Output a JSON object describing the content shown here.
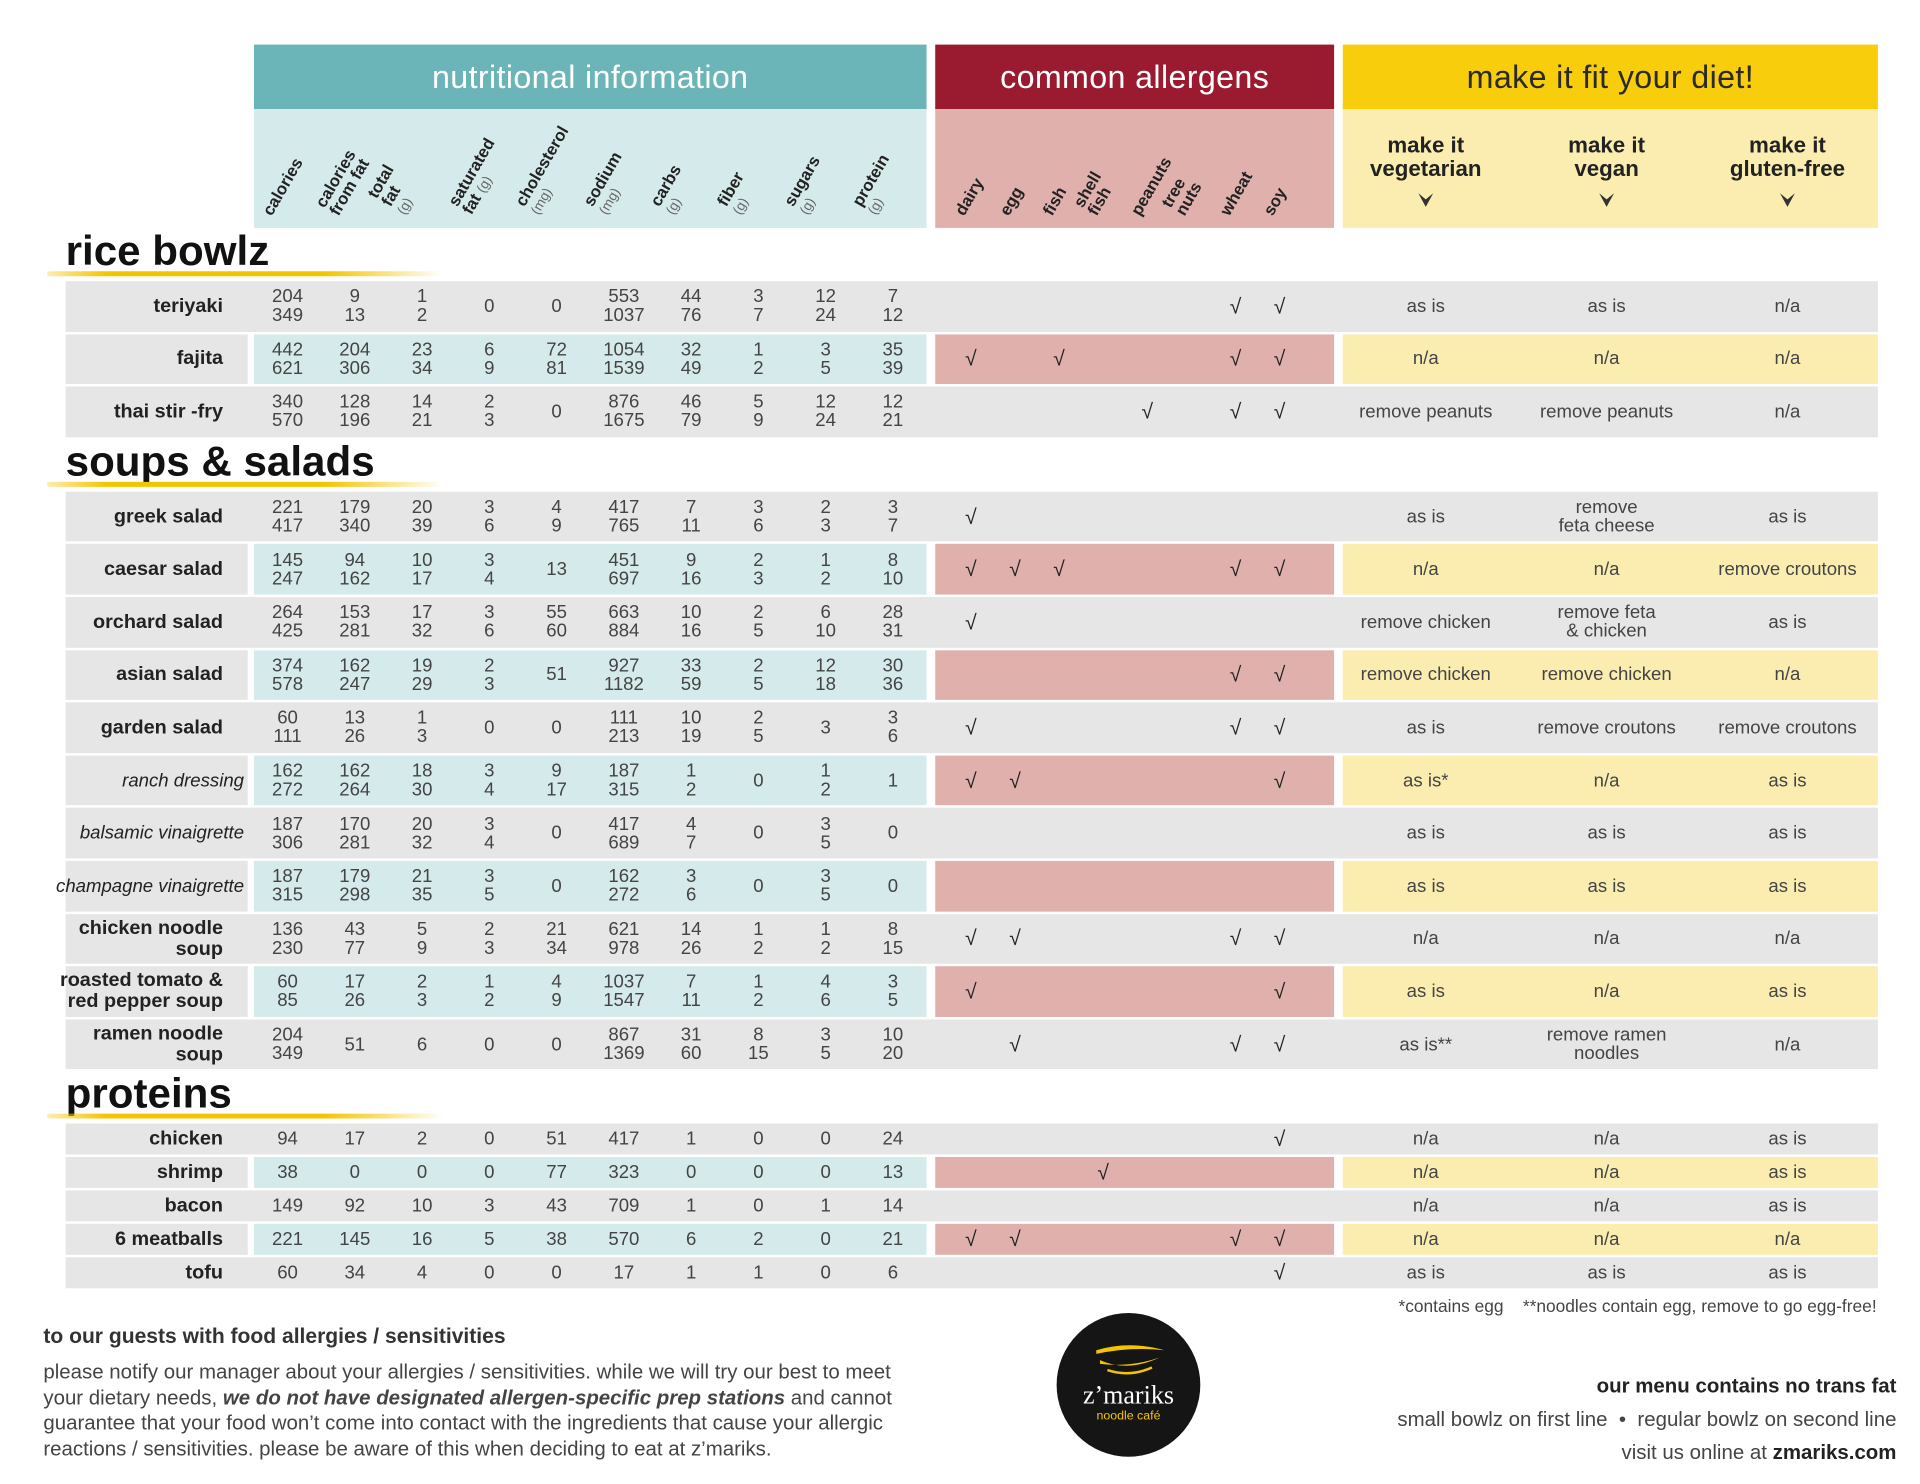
{
  "header": {
    "groups": [
      "nutritional information",
      "common allergens",
      "make it fit your diet!"
    ]
  },
  "nutrition_columns": [
    {
      "label": "calories"
    },
    {
      "label": "calories\nfrom fat"
    },
    {
      "label": "total fat",
      "unit": "(g)"
    },
    {
      "label": "saturated\nfat",
      "unit": "(g)"
    },
    {
      "label": "cholesterol",
      "unit": "(mg)"
    },
    {
      "label": "sodium",
      "unit": "(mg)"
    },
    {
      "label": "carbs",
      "unit": "(g)"
    },
    {
      "label": "fiber",
      "unit": "(g)"
    },
    {
      "label": "sugars",
      "unit": "(g)"
    },
    {
      "label": "protein",
      "unit": "(g)"
    }
  ],
  "allergen_columns": [
    "dairy",
    "egg",
    "fish",
    "shell fish",
    "peanuts",
    "tree nuts",
    "wheat",
    "soy"
  ],
  "diet_columns": [
    "make it\nvegetarian",
    "make it\nvegan",
    "make it\ngluten-free"
  ],
  "sections": [
    {
      "title": "rice bowlz",
      "rows": [
        {
          "name": "teriyaki",
          "nutrition": [
            [
              204,
              349
            ],
            [
              9,
              13
            ],
            [
              1,
              2
            ],
            0,
            0,
            [
              553,
              1037
            ],
            [
              44,
              76
            ],
            [
              3,
              7
            ],
            [
              12,
              24
            ],
            [
              7,
              12
            ]
          ],
          "allergens": [
            null,
            null,
            null,
            null,
            null,
            null,
            "√",
            "√"
          ],
          "diet": [
            "as is",
            "as is",
            "n/a"
          ]
        },
        {
          "name": "fajita",
          "nutrition": [
            [
              442,
              621
            ],
            [
              204,
              306
            ],
            [
              23,
              34
            ],
            [
              6,
              9
            ],
            [
              72,
              81
            ],
            [
              1054,
              1539
            ],
            [
              32,
              49
            ],
            [
              1,
              2
            ],
            [
              3,
              5
            ],
            [
              35,
              39
            ]
          ],
          "allergens": [
            "√",
            null,
            "√",
            null,
            null,
            null,
            "√",
            "√"
          ],
          "diet": [
            "n/a",
            "n/a",
            "n/a"
          ]
        },
        {
          "name": "thai stir -fry",
          "nutrition": [
            [
              340,
              570
            ],
            [
              128,
              196
            ],
            [
              14,
              21
            ],
            [
              2,
              3
            ],
            0,
            [
              876,
              1675
            ],
            [
              46,
              79
            ],
            [
              5,
              9
            ],
            [
              12,
              24
            ],
            [
              12,
              21
            ]
          ],
          "allergens": [
            null,
            null,
            null,
            null,
            "√",
            null,
            "√",
            "√"
          ],
          "diet": [
            "remove peanuts",
            "remove peanuts",
            "n/a"
          ]
        }
      ]
    },
    {
      "title": "soups & salads",
      "rows": [
        {
          "name": "greek salad",
          "nutrition": [
            [
              221,
              417
            ],
            [
              179,
              340
            ],
            [
              20,
              39
            ],
            [
              3,
              6
            ],
            [
              4,
              9
            ],
            [
              417,
              765
            ],
            [
              7,
              11
            ],
            [
              3,
              6
            ],
            [
              2,
              3
            ],
            [
              3,
              7
            ]
          ],
          "allergens": [
            "√",
            null,
            null,
            null,
            null,
            null,
            null,
            null
          ],
          "diet": [
            "as is",
            "remove\nfeta cheese",
            "as is"
          ]
        },
        {
          "name": "caesar salad",
          "nutrition": [
            [
              145,
              247
            ],
            [
              94,
              162
            ],
            [
              10,
              17
            ],
            [
              3,
              4
            ],
            13,
            [
              451,
              697
            ],
            [
              9,
              16
            ],
            [
              2,
              3
            ],
            [
              1,
              2
            ],
            [
              8,
              10
            ]
          ],
          "allergens": [
            "√",
            "√",
            "√",
            null,
            null,
            null,
            "√",
            "√"
          ],
          "diet": [
            "n/a",
            "n/a",
            "remove croutons"
          ]
        },
        {
          "name": "orchard salad",
          "nutrition": [
            [
              264,
              425
            ],
            [
              153,
              281
            ],
            [
              17,
              32
            ],
            [
              3,
              6
            ],
            [
              55,
              60
            ],
            [
              663,
              884
            ],
            [
              10,
              16
            ],
            [
              2,
              5
            ],
            [
              6,
              10
            ],
            [
              28,
              31
            ]
          ],
          "allergens": [
            "√",
            null,
            null,
            null,
            null,
            null,
            null,
            null
          ],
          "diet": [
            "remove chicken",
            "remove feta\n& chicken",
            "as is"
          ]
        },
        {
          "name": "asian salad",
          "nutrition": [
            [
              374,
              578
            ],
            [
              162,
              247
            ],
            [
              19,
              29
            ],
            [
              2,
              3
            ],
            51,
            [
              927,
              1182
            ],
            [
              33,
              59
            ],
            [
              2,
              5
            ],
            [
              12,
              18
            ],
            [
              30,
              36
            ]
          ],
          "allergens": [
            null,
            null,
            null,
            null,
            null,
            null,
            "√",
            "√"
          ],
          "diet": [
            "remove chicken",
            "remove chicken",
            "n/a"
          ]
        },
        {
          "name": "garden salad",
          "nutrition": [
            [
              60,
              111
            ],
            [
              13,
              26
            ],
            [
              1,
              3
            ],
            0,
            0,
            [
              111,
              213
            ],
            [
              10,
              19
            ],
            [
              2,
              5
            ],
            3,
            [
              3,
              6
            ]
          ],
          "allergens": [
            "√",
            null,
            null,
            null,
            null,
            null,
            "√",
            "√"
          ],
          "diet": [
            "as is",
            "remove croutons",
            "remove croutons"
          ]
        },
        {
          "name": "ranch dressing",
          "italic": true,
          "nutrition": [
            [
              162,
              272
            ],
            [
              162,
              264
            ],
            [
              18,
              30
            ],
            [
              3,
              4
            ],
            [
              9,
              17
            ],
            [
              187,
              315
            ],
            [
              1,
              2
            ],
            0,
            [
              1,
              2
            ],
            1
          ],
          "allergens": [
            "√",
            "√",
            null,
            null,
            null,
            null,
            null,
            "√"
          ],
          "diet": [
            "as is*",
            "n/a",
            "as is"
          ]
        },
        {
          "name": "balsamic vinaigrette",
          "italic": true,
          "nutrition": [
            [
              187,
              306
            ],
            [
              170,
              281
            ],
            [
              20,
              32
            ],
            [
              3,
              4
            ],
            0,
            [
              417,
              689
            ],
            [
              4,
              7
            ],
            0,
            [
              3,
              5
            ],
            0
          ],
          "allergens": [
            null,
            null,
            null,
            null,
            null,
            null,
            null,
            null
          ],
          "diet": [
            "as is",
            "as is",
            "as is"
          ]
        },
        {
          "name": "champagne vinaigrette",
          "italic": true,
          "nutrition": [
            [
              187,
              315
            ],
            [
              179,
              298
            ],
            [
              21,
              35
            ],
            [
              3,
              5
            ],
            0,
            [
              162,
              272
            ],
            [
              3,
              6
            ],
            0,
            [
              3,
              5
            ],
            0
          ],
          "allergens": [
            null,
            null,
            null,
            null,
            null,
            null,
            null,
            null
          ],
          "diet": [
            "as is",
            "as is",
            "as is"
          ]
        },
        {
          "name": "chicken noodle\nsoup",
          "nutrition": [
            [
              136,
              230
            ],
            [
              43,
              77
            ],
            [
              5,
              9
            ],
            [
              2,
              3
            ],
            [
              21,
              34
            ],
            [
              621,
              978
            ],
            [
              14,
              26
            ],
            [
              1,
              2
            ],
            [
              1,
              2
            ],
            [
              8,
              15
            ]
          ],
          "allergens": [
            "√",
            "√",
            null,
            null,
            null,
            null,
            "√",
            "√"
          ],
          "diet": [
            "n/a",
            "n/a",
            "n/a"
          ]
        },
        {
          "name": "roasted tomato &\nred pepper soup",
          "nutrition": [
            [
              60,
              85
            ],
            [
              17,
              26
            ],
            [
              2,
              3
            ],
            [
              1,
              2
            ],
            [
              4,
              9
            ],
            [
              1037,
              1547
            ],
            [
              7,
              11
            ],
            [
              1,
              2
            ],
            [
              4,
              6
            ],
            [
              3,
              5
            ]
          ],
          "allergens": [
            "√",
            null,
            null,
            null,
            null,
            null,
            null,
            "√"
          ],
          "diet": [
            "as is",
            "n/a",
            "as is"
          ]
        },
        {
          "name": "ramen noodle\nsoup",
          "nutrition": [
            [
              204,
              349
            ],
            51,
            6,
            0,
            0,
            [
              867,
              1369
            ],
            [
              31,
              60
            ],
            [
              8,
              15
            ],
            [
              3,
              5
            ],
            [
              10,
              20
            ]
          ],
          "allergens": [
            null,
            "√",
            null,
            null,
            null,
            null,
            "√",
            "√"
          ],
          "diet": [
            "as is**",
            "remove ramen\nnoodles",
            "n/a"
          ]
        }
      ]
    },
    {
      "title": "proteins",
      "rows": [
        {
          "name": "chicken",
          "nutrition": [
            94,
            17,
            2,
            0,
            51,
            417,
            1,
            0,
            0,
            24
          ],
          "allergens": [
            null,
            null,
            null,
            null,
            null,
            null,
            null,
            "√"
          ],
          "diet": [
            "n/a",
            "n/a",
            "as is"
          ]
        },
        {
          "name": "shrimp",
          "nutrition": [
            38,
            0,
            0,
            0,
            77,
            323,
            0,
            0,
            0,
            13
          ],
          "allergens": [
            null,
            null,
            null,
            "√",
            null,
            null,
            null,
            null
          ],
          "diet": [
            "n/a",
            "n/a",
            "as is"
          ]
        },
        {
          "name": "bacon",
          "nutrition": [
            149,
            92,
            10,
            3,
            43,
            709,
            1,
            0,
            1,
            14
          ],
          "allergens": [
            null,
            null,
            null,
            null,
            null,
            null,
            null,
            null
          ],
          "diet": [
            "n/a",
            "n/a",
            "as is"
          ]
        },
        {
          "name": "6 meatballs",
          "nutrition": [
            221,
            145,
            16,
            5,
            38,
            570,
            6,
            2,
            0,
            21
          ],
          "allergens": [
            "√",
            "√",
            null,
            null,
            null,
            null,
            "√",
            "√"
          ],
          "diet": [
            "n/a",
            "n/a",
            "n/a"
          ]
        },
        {
          "name": "tofu",
          "nutrition": [
            60,
            34,
            4,
            0,
            0,
            17,
            1,
            1,
            0,
            6
          ],
          "allergens": [
            null,
            null,
            null,
            null,
            null,
            null,
            null,
            "√"
          ],
          "diet": [
            "as is",
            "as is",
            "as is"
          ]
        }
      ]
    }
  ],
  "footnotes": [
    "*contains egg",
    "**noodles contain egg, remove to go egg-free!"
  ],
  "notice": {
    "title": "to our guests with food allergies / sensitivities",
    "text_before": "please notify our manager about your allergies / sensitivities. while we will try our best to meet your dietary needs,",
    "emphasis": "we do not have designated allergen-specific prep stations",
    "text_after": "and cannot guarantee that your food won’t come into contact with the ingredients that cause your allergic reactions / sensitivities. please be aware of this when deciding to eat at z’mariks."
  },
  "logo": {
    "name": "z’mariks",
    "tagline": "noodle café"
  },
  "footer": {
    "trans_fat": "our menu contains no trans fat",
    "small": "small bowlz on first line",
    "separator": "•",
    "regular": "regular bowlz on second line",
    "visit": "visit us online at",
    "url": "zmariks.com"
  }
}
